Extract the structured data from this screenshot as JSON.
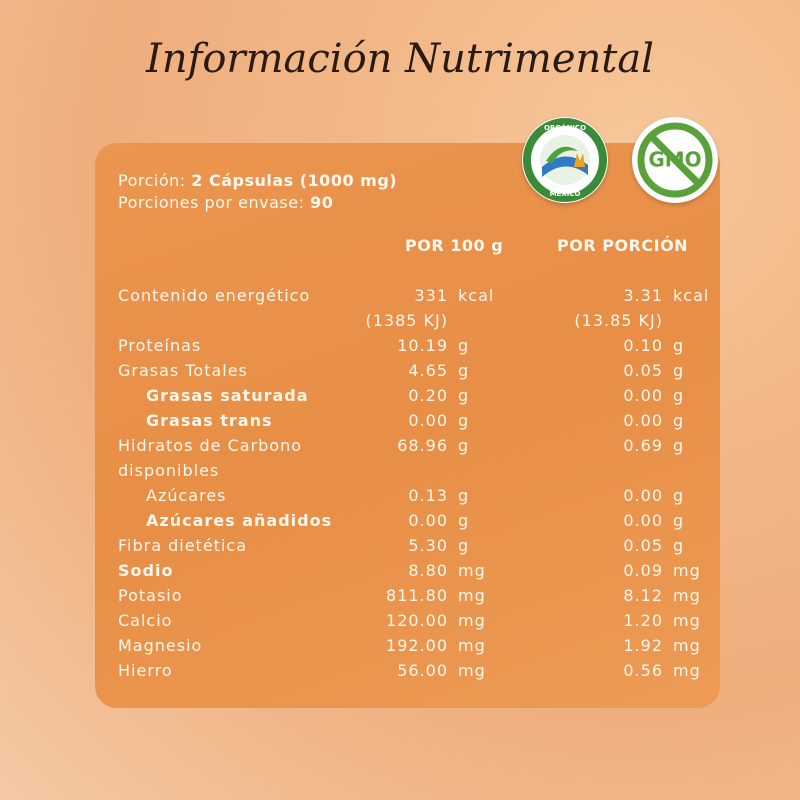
{
  "header": {
    "title": "Información Nutrimental"
  },
  "serving": {
    "portion_label": "Porción:",
    "portion_value": "2 Cápsulas (1000 mg)",
    "servings_label": "Porciones por envase:",
    "servings_value": "90"
  },
  "badges": {
    "organic_top": "ORGÁNICO",
    "organic_bottom": "MÉXICO",
    "gmo": "GMO"
  },
  "table": {
    "columns": [
      "POR 100 g",
      "POR PORCIÓN"
    ],
    "rows": [
      {
        "name": "Contenido energético",
        "per100": "331",
        "per100_unit": "kcal",
        "per100_extra": "(1385 KJ)",
        "portion": "3.31",
        "portion_unit": "kcal",
        "portion_extra": "(13.85 KJ)",
        "bold": false,
        "indent": false
      },
      {
        "name": "Proteínas",
        "per100": "10.19",
        "per100_unit": "g",
        "portion": "0.10",
        "portion_unit": "g",
        "bold": false,
        "indent": false
      },
      {
        "name": "Grasas Totales",
        "per100": "4.65",
        "per100_unit": "g",
        "portion": "0.05",
        "portion_unit": "g",
        "bold": false,
        "indent": false
      },
      {
        "name": "Grasas saturada",
        "per100": "0.20",
        "per100_unit": "g",
        "portion": "0.00",
        "portion_unit": "g",
        "bold": true,
        "indent": true
      },
      {
        "name": "Grasas trans",
        "per100": "0.00",
        "per100_unit": "g",
        "portion": "0.00",
        "portion_unit": "g",
        "bold": true,
        "indent": true
      },
      {
        "name": "Hidratos de Carbono disponibles",
        "per100": "68.96",
        "per100_unit": "g",
        "portion": "0.69",
        "portion_unit": "g",
        "bold": false,
        "indent": false
      },
      {
        "name": "Azúcares",
        "per100": "0.13",
        "per100_unit": "g",
        "portion": "0.00",
        "portion_unit": "g",
        "bold": false,
        "indent": true
      },
      {
        "name": "Azúcares añadidos",
        "per100": "0.00",
        "per100_unit": "g",
        "portion": "0.00",
        "portion_unit": "g",
        "bold": true,
        "indent": true
      },
      {
        "name": "Fibra dietética",
        "per100": "5.30",
        "per100_unit": "g",
        "portion": "0.05",
        "portion_unit": "g",
        "bold": false,
        "indent": false
      },
      {
        "name": "Sodio",
        "per100": "8.80",
        "per100_unit": "mg",
        "portion": "0.09",
        "portion_unit": "mg",
        "bold": true,
        "indent": false
      },
      {
        "name": "Potasio",
        "per100": "811.80",
        "per100_unit": "mg",
        "portion": "8.12",
        "portion_unit": "mg",
        "bold": false,
        "indent": false
      },
      {
        "name": "Calcio",
        "per100": "120.00",
        "per100_unit": "mg",
        "portion": "1.20",
        "portion_unit": "mg",
        "bold": false,
        "indent": false
      },
      {
        "name": "Magnesio",
        "per100": "192.00",
        "per100_unit": "mg",
        "portion": "1.92",
        "portion_unit": "mg",
        "bold": false,
        "indent": false
      },
      {
        "name": "Hierro",
        "per100": "56.00",
        "per100_unit": "mg",
        "portion": "0.56",
        "portion_unit": "mg",
        "bold": false,
        "indent": false
      }
    ]
  }
}
